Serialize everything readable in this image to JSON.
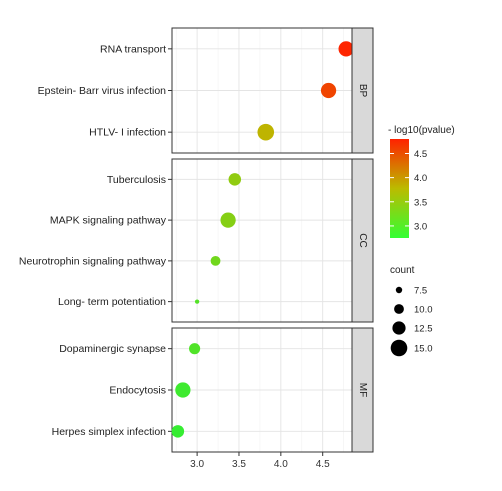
{
  "chart_data": {
    "type": "scatter",
    "xlabel": "",
    "ylabel": "",
    "title": "",
    "xlim": [
      2.7,
      4.85
    ],
    "xticks": [
      3.0,
      3.5,
      4.0,
      4.5
    ],
    "xtick_labels": [
      "3.0",
      "3.5",
      "4.0",
      "4.5"
    ],
    "grid": true,
    "facets": [
      {
        "name": "BP",
        "terms": [
          {
            "label": "RNA transport",
            "x": 4.78,
            "count": 14,
            "pvalue_log": 4.78
          },
          {
            "label": "Epstein- Barr virus infection",
            "x": 4.57,
            "count": 14,
            "pvalue_log": 4.57
          },
          {
            "label": "HTLV- I infection",
            "x": 3.82,
            "count": 15,
            "pvalue_log": 3.82
          }
        ]
      },
      {
        "name": "CC",
        "terms": [
          {
            "label": "Tuberculosis",
            "x": 3.45,
            "count": 12,
            "pvalue_log": 3.45
          },
          {
            "label": "MAPK signaling pathway",
            "x": 3.37,
            "count": 14,
            "pvalue_log": 3.37
          },
          {
            "label": "Neurotrophin signaling pathway",
            "x": 3.22,
            "count": 10,
            "pvalue_log": 3.22
          },
          {
            "label": "Long- term potentiation",
            "x": 3.0,
            "count": 6,
            "pvalue_log": 3.0
          }
        ]
      },
      {
        "name": "MF",
        "terms": [
          {
            "label": "Dopaminergic synapse",
            "x": 2.97,
            "count": 11,
            "pvalue_log": 2.97
          },
          {
            "label": "Endocytosis",
            "x": 2.83,
            "count": 14,
            "pvalue_log": 2.83
          },
          {
            "label": "Herpes simplex infection",
            "x": 2.77,
            "count": 12,
            "pvalue_log": 2.77
          }
        ]
      }
    ],
    "color_legend": {
      "title": "- log10(pvalue)",
      "ticks": [
        3.0,
        3.5,
        4.0,
        4.5
      ],
      "tick_labels": [
        "3.0",
        "3.5",
        "4.0",
        "4.5"
      ],
      "range": [
        2.75,
        4.8
      ],
      "colors": [
        "#33ee33",
        "#bbbb00",
        "#ff2200"
      ]
    },
    "size_legend": {
      "title": "count",
      "values": [
        7.5,
        10.0,
        12.5,
        15.0
      ],
      "labels": [
        "7.5",
        "10.0",
        "12.5",
        "15.0"
      ]
    }
  }
}
